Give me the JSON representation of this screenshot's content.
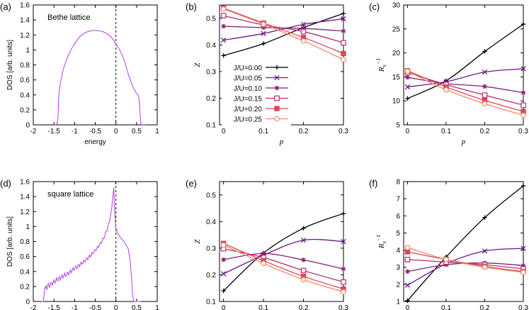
{
  "colors": {
    "dos": "#b040e0",
    "axis": "#000000",
    "dash": "#000000"
  },
  "legend": [
    {
      "label": "J/U=0.00",
      "color": "#000000",
      "marker": "plus"
    },
    {
      "label": "J/U=0.05",
      "color": "#6a1a86",
      "marker": "x"
    },
    {
      "label": "J/U=0.10",
      "color": "#86207a",
      "marker": "star"
    },
    {
      "label": "J/U=0.15",
      "color": "#b2306e",
      "marker": "square-open"
    },
    {
      "label": "J/U=0.20",
      "color": "#d9495a",
      "marker": "square-filled"
    },
    {
      "label": "J/U=0.25",
      "color": "#f28866",
      "marker": "circle-open"
    }
  ],
  "chart_data": [
    {
      "id": "a",
      "panel_label": "(a)",
      "type": "line",
      "title": "Bethe lattice",
      "xlabel": "energy",
      "ylabel": "DOS [arb. units]",
      "xlim": [
        -2,
        1
      ],
      "ylim": [
        0,
        1.6
      ],
      "xticks": [
        -2,
        -1.5,
        -1,
        -0.5,
        0,
        0.5,
        1
      ],
      "yticks": [
        0,
        0.2,
        0.4,
        0.6,
        0.8,
        1,
        1.2,
        1.4,
        1.6
      ],
      "dashed_vline_x": 0,
      "x": [
        -1.5,
        -1.45,
        -1.42,
        -1.4,
        -1.38,
        -1.3,
        -1.2,
        -1.1,
        -1.0,
        -0.9,
        -0.8,
        -0.7,
        -0.6,
        -0.5,
        -0.4,
        -0.3,
        -0.2,
        -0.1,
        0.0,
        0.1,
        0.2,
        0.3,
        0.4,
        0.5,
        0.55,
        0.58,
        0.6,
        0.62,
        0.7
      ],
      "y": [
        0,
        0.0,
        0.03,
        0.12,
        0.4,
        0.68,
        0.86,
        0.99,
        1.08,
        1.16,
        1.21,
        1.24,
        1.255,
        1.26,
        1.255,
        1.24,
        1.21,
        1.16,
        1.08,
        0.99,
        0.86,
        0.68,
        0.52,
        0.42,
        0.38,
        0.2,
        0.05,
        0.0,
        0.0
      ]
    },
    {
      "id": "b",
      "panel_label": "(b)",
      "type": "line",
      "xlabel": "p",
      "ylabel": "Z",
      "xlim": [
        -0.01,
        0.3
      ],
      "ylim": [
        0.1,
        0.55
      ],
      "xticks": [
        0,
        0.1,
        0.2,
        0.3
      ],
      "yticks": [
        0.1,
        0.2,
        0.3,
        0.4,
        0.5
      ],
      "x": [
        0,
        0.1,
        0.2,
        0.3
      ],
      "series": [
        {
          "name": "J/U=0.00",
          "values": [
            0.36,
            0.405,
            0.465,
            0.518
          ]
        },
        {
          "name": "J/U=0.05",
          "values": [
            0.418,
            0.443,
            0.477,
            0.498
          ]
        },
        {
          "name": "J/U=0.10",
          "values": [
            0.47,
            0.465,
            0.462,
            0.452
          ]
        },
        {
          "name": "J/U=0.15",
          "values": [
            0.51,
            0.475,
            0.45,
            0.408
          ]
        },
        {
          "name": "J/U=0.20",
          "values": [
            0.538,
            0.482,
            0.428,
            0.368
          ]
        },
        {
          "name": "J/U=0.25",
          "values": [
            0.535,
            0.478,
            0.415,
            0.345
          ]
        }
      ]
    },
    {
      "id": "c",
      "panel_label": "(c)",
      "type": "line",
      "xlabel": "p",
      "ylabel": "R_s^-1",
      "xlim": [
        -0.01,
        0.3
      ],
      "ylim": [
        5,
        30
      ],
      "xticks": [
        0,
        0.1,
        0.2,
        0.3
      ],
      "yticks": [
        5,
        10,
        15,
        20,
        25,
        30
      ],
      "x": [
        0,
        0.1,
        0.2,
        0.3
      ],
      "series": [
        {
          "name": "J/U=0.00",
          "values": [
            10.5,
            14.2,
            20.3,
            26.0
          ]
        },
        {
          "name": "J/U=0.05",
          "values": [
            12.9,
            14.0,
            16.0,
            16.7
          ]
        },
        {
          "name": "J/U=0.10",
          "values": [
            14.9,
            13.6,
            13.0,
            11.7
          ]
        },
        {
          "name": "J/U=0.15",
          "values": [
            15.9,
            13.4,
            11.2,
            9.1
          ]
        },
        {
          "name": "J/U=0.20",
          "values": [
            16.3,
            12.9,
            10.1,
            7.8
          ]
        },
        {
          "name": "J/U=0.25",
          "values": [
            16.2,
            12.3,
            9.4,
            7.0
          ]
        }
      ]
    },
    {
      "id": "d",
      "panel_label": "(d)",
      "type": "line",
      "title": "square lattice",
      "xlabel": "energy",
      "ylabel": "DOS [arb. units]",
      "xlim": [
        -2,
        1
      ],
      "ylim": [
        0,
        1.6
      ],
      "xticks": [
        -2,
        -1.5,
        -1,
        -0.5,
        0,
        0.5,
        1
      ],
      "yticks": [
        0,
        0.2,
        0.4,
        0.6,
        0.8,
        1,
        1.2,
        1.4,
        1.6
      ],
      "dashed_vline_x": 0,
      "x": [
        -1.8,
        -1.76,
        -1.74,
        -1.72,
        -1.6,
        -1.4,
        -1.2,
        -1.0,
        -0.8,
        -0.6,
        -0.4,
        -0.3,
        -0.2,
        -0.15,
        -0.1,
        -0.07,
        -0.05,
        -0.03,
        0.0,
        0.05,
        0.1,
        0.15,
        0.2,
        0.3,
        0.35,
        0.38,
        0.4,
        0.42,
        0.44,
        0.5,
        0.6
      ],
      "y": [
        0,
        0.0,
        0.08,
        0.18,
        0.22,
        0.3,
        0.36,
        0.44,
        0.52,
        0.62,
        0.75,
        0.84,
        0.98,
        1.08,
        1.25,
        1.42,
        1.52,
        1.2,
        0.98,
        0.9,
        0.86,
        0.83,
        0.8,
        0.7,
        0.52,
        0.3,
        0.12,
        0.03,
        0.0,
        0.0,
        0.0
      ]
    },
    {
      "id": "e",
      "panel_label": "(e)",
      "type": "line",
      "xlabel": "p",
      "ylabel": "Z",
      "xlim": [
        -0.01,
        0.3
      ],
      "ylim": [
        0.1,
        0.55
      ],
      "xticks": [
        0,
        0.1,
        0.2,
        0.3
      ],
      "yticks": [
        0.1,
        0.2,
        0.3,
        0.4,
        0.5
      ],
      "x": [
        0,
        0.1,
        0.2,
        0.3
      ],
      "series": [
        {
          "name": "J/U=0.00",
          "values": [
            0.14,
            0.282,
            0.375,
            0.43
          ]
        },
        {
          "name": "J/U=0.05",
          "values": [
            0.204,
            0.274,
            0.33,
            0.325
          ]
        },
        {
          "name": "J/U=0.10",
          "values": [
            0.257,
            0.28,
            0.256,
            0.222
          ]
        },
        {
          "name": "J/U=0.15",
          "values": [
            0.298,
            0.265,
            0.216,
            0.173
          ]
        },
        {
          "name": "J/U=0.20",
          "values": [
            0.318,
            0.253,
            0.194,
            0.147
          ]
        },
        {
          "name": "J/U=0.25",
          "values": [
            0.312,
            0.243,
            0.182,
            0.136
          ]
        }
      ]
    },
    {
      "id": "f",
      "panel_label": "(f)",
      "type": "line",
      "xlabel": "p",
      "ylabel": "R_s^-1",
      "xlim": [
        -0.01,
        0.3
      ],
      "ylim": [
        1,
        8
      ],
      "xticks": [
        0,
        0.1,
        0.2,
        0.3
      ],
      "yticks": [
        1,
        2,
        3,
        4,
        5,
        6,
        7,
        8
      ],
      "x": [
        0,
        0.1,
        0.2,
        0.3
      ],
      "series": [
        {
          "name": "J/U=0.00",
          "values": [
            1.05,
            3.6,
            5.9,
            7.75
          ]
        },
        {
          "name": "J/U=0.05",
          "values": [
            1.95,
            3.2,
            3.95,
            4.1
          ]
        },
        {
          "name": "J/U=0.10",
          "values": [
            2.75,
            3.15,
            3.25,
            3.1
          ]
        },
        {
          "name": "J/U=0.15",
          "values": [
            3.45,
            3.3,
            3.15,
            2.9
          ]
        },
        {
          "name": "J/U=0.20",
          "values": [
            3.9,
            3.45,
            3.05,
            2.75
          ]
        },
        {
          "name": "J/U=0.25",
          "values": [
            4.15,
            3.45,
            3.0,
            2.7
          ]
        }
      ]
    }
  ]
}
